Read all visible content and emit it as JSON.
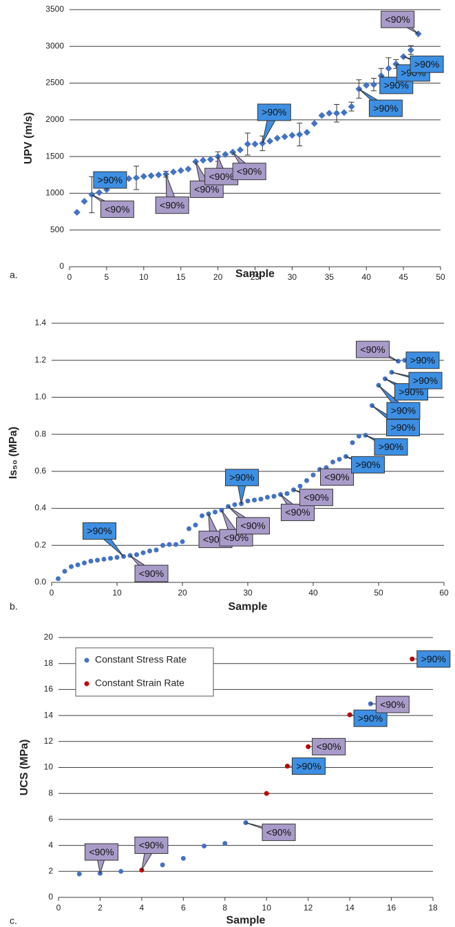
{
  "chart_data": [
    {
      "type": "scatter",
      "panel_label": "a.",
      "x_label": "Sample",
      "y_label": "UPV (m/s)",
      "marker": "diamond",
      "grid": true,
      "xlim": [
        0,
        50
      ],
      "xticks": [
        0,
        5,
        10,
        15,
        20,
        25,
        30,
        35,
        40,
        45,
        50
      ],
      "ylim": [
        0,
        3500
      ],
      "yticks": [
        0,
        500,
        1000,
        1500,
        2000,
        2500,
        3000,
        3500
      ],
      "series": [
        {
          "color": "#4472c4",
          "x": [
            1,
            2,
            3,
            4,
            5,
            6,
            7,
            8,
            9,
            10,
            11,
            12,
            13,
            14,
            15,
            16,
            17,
            18,
            19,
            20,
            21,
            22,
            23,
            24,
            25,
            26,
            27,
            28,
            29,
            30,
            31,
            32,
            33,
            34,
            35,
            36,
            37,
            38,
            39,
            40,
            41,
            42,
            43,
            44,
            45,
            46,
            47
          ],
          "values": [
            740,
            890,
            980,
            1010,
            1050,
            1150,
            1180,
            1200,
            1210,
            1230,
            1240,
            1250,
            1260,
            1290,
            1310,
            1330,
            1430,
            1450,
            1460,
            1500,
            1530,
            1560,
            1590,
            1670,
            1670,
            1680,
            1710,
            1750,
            1770,
            1790,
            1800,
            1830,
            1950,
            2060,
            2090,
            2090,
            2100,
            2180,
            2420,
            2470,
            2480,
            2600,
            2700,
            2760,
            2860,
            2950,
            3170
          ],
          "errors": [
            null,
            null,
            245,
            null,
            null,
            null,
            null,
            null,
            160,
            null,
            null,
            null,
            40,
            null,
            null,
            null,
            null,
            null,
            null,
            65,
            null,
            null,
            null,
            150,
            null,
            100,
            null,
            null,
            null,
            null,
            155,
            null,
            null,
            null,
            null,
            120,
            null,
            60,
            125,
            null,
            85,
            100,
            145,
            60,
            null,
            60,
            null
          ]
        }
      ],
      "annotations": [
        {
          "text": ">90%",
          "x": 5,
          "y": 1050,
          "color": "#3d8fe3"
        },
        {
          "text": "<90%",
          "x": 3,
          "y": 980,
          "color": "#a99bc9"
        },
        {
          "text": "<90%",
          "x": 13,
          "y": 1260,
          "color": "#a99bc9"
        },
        {
          "text": "<90%",
          "x": 17,
          "y": 1430,
          "color": "#a99bc9"
        },
        {
          "text": "<90%",
          "x": 20,
          "y": 1500,
          "color": "#a99bc9"
        },
        {
          "text": "<90%",
          "x": 22,
          "y": 1560,
          "color": "#a99bc9"
        },
        {
          "text": ">90%",
          "x": 26,
          "y": 1680,
          "color": "#3d8fe3"
        },
        {
          "text": ">90%",
          "x": 39,
          "y": 2420,
          "color": "#3d8fe3"
        },
        {
          "text": ">90%",
          "x": 42,
          "y": 2600,
          "color": "#3d8fe3"
        },
        {
          "text": ">90%",
          "x": 44,
          "y": 2760,
          "color": "#3d8fe3"
        },
        {
          "text": ">90%",
          "x": 45,
          "y": 2860,
          "color": "#3d8fe3"
        },
        {
          "text": "<90%",
          "x": 47,
          "y": 3170,
          "color": "#a99bc9"
        }
      ]
    },
    {
      "type": "scatter",
      "panel_label": "b.",
      "x_label": "Sample",
      "y_label": "Is₅₀ (MPa)",
      "marker": "circle",
      "grid": true,
      "xlim": [
        0,
        60
      ],
      "xticks": [
        0,
        10,
        20,
        30,
        40,
        50,
        60
      ],
      "ylim": [
        0,
        1.4
      ],
      "yticks": [
        {
          "value": 0,
          "label": "0.0"
        },
        0.2,
        0.4,
        0.6,
        0.8,
        {
          "value": 1,
          "label": "1.0"
        },
        1.2,
        1.4
      ],
      "series": [
        {
          "color": "#4472c4",
          "x": [
            1,
            2,
            3,
            4,
            5,
            6,
            7,
            8,
            9,
            10,
            11,
            12,
            13,
            14,
            15,
            16,
            17,
            18,
            19,
            20,
            21,
            22,
            23,
            24,
            25,
            26,
            27,
            28,
            29,
            30,
            31,
            32,
            33,
            34,
            35,
            36,
            37,
            38,
            39,
            40,
            41,
            42,
            43,
            44,
            45,
            46,
            47,
            48,
            49,
            50,
            51,
            52,
            53,
            54
          ],
          "values": [
            0.02,
            0.06,
            0.085,
            0.095,
            0.105,
            0.115,
            0.12,
            0.125,
            0.13,
            0.135,
            0.14,
            0.145,
            0.15,
            0.16,
            0.17,
            0.175,
            0.2,
            0.205,
            0.205,
            0.22,
            0.29,
            0.31,
            0.36,
            0.37,
            0.38,
            0.39,
            0.41,
            0.42,
            0.425,
            0.44,
            0.445,
            0.45,
            0.46,
            0.465,
            0.475,
            0.48,
            0.5,
            0.52,
            0.55,
            0.58,
            0.61,
            0.62,
            0.65,
            0.665,
            0.68,
            0.755,
            0.79,
            0.795,
            0.955,
            1.065,
            1.1,
            1.135,
            1.195,
            1.2
          ]
        }
      ],
      "annotations": [
        {
          "text": ">90%",
          "x": 11,
          "y": 0.14,
          "color": "#3d8fe3"
        },
        {
          "text": "<90%",
          "x": 12,
          "y": 0.145,
          "color": "#a99bc9"
        },
        {
          "text": "<90%",
          "x": 24,
          "y": 0.37,
          "color": "#a99bc9"
        },
        {
          "text": "<90%",
          "x": 26,
          "y": 0.39,
          "color": "#a99bc9"
        },
        {
          "text": "<90%",
          "x": 27,
          "y": 0.41,
          "color": "#a99bc9"
        },
        {
          "text": ">90%",
          "x": 29,
          "y": 0.425,
          "color": "#3d8fe3"
        },
        {
          "text": "<90%",
          "x": 35,
          "y": 0.475,
          "color": "#a99bc9"
        },
        {
          "text": "<90%",
          "x": 37,
          "y": 0.5,
          "color": "#a99bc9"
        },
        {
          "text": "<90%",
          "x": 41,
          "y": 0.61,
          "color": "#a99bc9"
        },
        {
          "text": ">90%",
          "x": 45,
          "y": 0.68,
          "color": "#3d8fe3"
        },
        {
          "text": ">90%",
          "x": 48,
          "y": 0.795,
          "color": "#3d8fe3"
        },
        {
          "text": ">90%",
          "x": 49,
          "y": 0.955,
          "color": "#3d8fe3"
        },
        {
          "text": ">90%",
          "x": 50,
          "y": 1.065,
          "color": "#3d8fe3"
        },
        {
          "text": ">90%",
          "x": 51,
          "y": 1.1,
          "color": "#3d8fe3"
        },
        {
          "text": ">90%",
          "x": 52,
          "y": 1.135,
          "color": "#3d8fe3"
        },
        {
          "text": ">90%",
          "x": 54,
          "y": 1.2,
          "color": "#3d8fe3"
        },
        {
          "text": "<90%",
          "x": 53,
          "y": 1.195,
          "color": "#a99bc9"
        }
      ]
    },
    {
      "type": "scatter",
      "panel_label": "c.",
      "x_label": "Sample",
      "y_label": "UCS (MPa)",
      "marker": "circle",
      "grid": true,
      "legend": "upper left",
      "xlim": [
        0,
        18
      ],
      "xticks": [
        0,
        2,
        4,
        6,
        8,
        10,
        12,
        14,
        16,
        18
      ],
      "ylim": [
        0,
        20
      ],
      "yticks": [
        0,
        2,
        4,
        6,
        8,
        10,
        12,
        14,
        16,
        18,
        20
      ],
      "series": [
        {
          "name": "Constant Stress Rate",
          "color": "#4472c4",
          "x": [
            1,
            2,
            3,
            5,
            6,
            7,
            8,
            9,
            15
          ],
          "values": [
            1.8,
            1.85,
            2,
            2.5,
            3,
            3.95,
            4.15,
            5.75,
            14.9
          ]
        },
        {
          "name": "Constant Strain Rate",
          "color": "#c00000",
          "x": [
            4,
            10,
            11,
            12,
            14,
            17
          ],
          "values": [
            2.1,
            8,
            10.1,
            11.6,
            14.05,
            18.35
          ]
        }
      ],
      "annotations": [
        {
          "text": "<90%",
          "x": 2,
          "y": 1.85,
          "color": "#a99bc9"
        },
        {
          "text": "<90%",
          "x": 4,
          "y": 2.1,
          "color": "#a99bc9"
        },
        {
          "text": "<90%",
          "x": 9,
          "y": 5.75,
          "color": "#a99bc9"
        },
        {
          "text": ">90%",
          "x": 11,
          "y": 10.1,
          "color": "#3d8fe3"
        },
        {
          "text": "<90%",
          "x": 12,
          "y": 11.6,
          "color": "#a99bc9"
        },
        {
          "text": ">90%",
          "x": 14,
          "y": 14.05,
          "color": "#3d8fe3"
        },
        {
          "text": "<90%",
          "x": 15,
          "y": 14.9,
          "color": "#a99bc9"
        },
        {
          "text": ">90%",
          "x": 17,
          "y": 18.35,
          "color": "#3d8fe3"
        }
      ]
    }
  ]
}
